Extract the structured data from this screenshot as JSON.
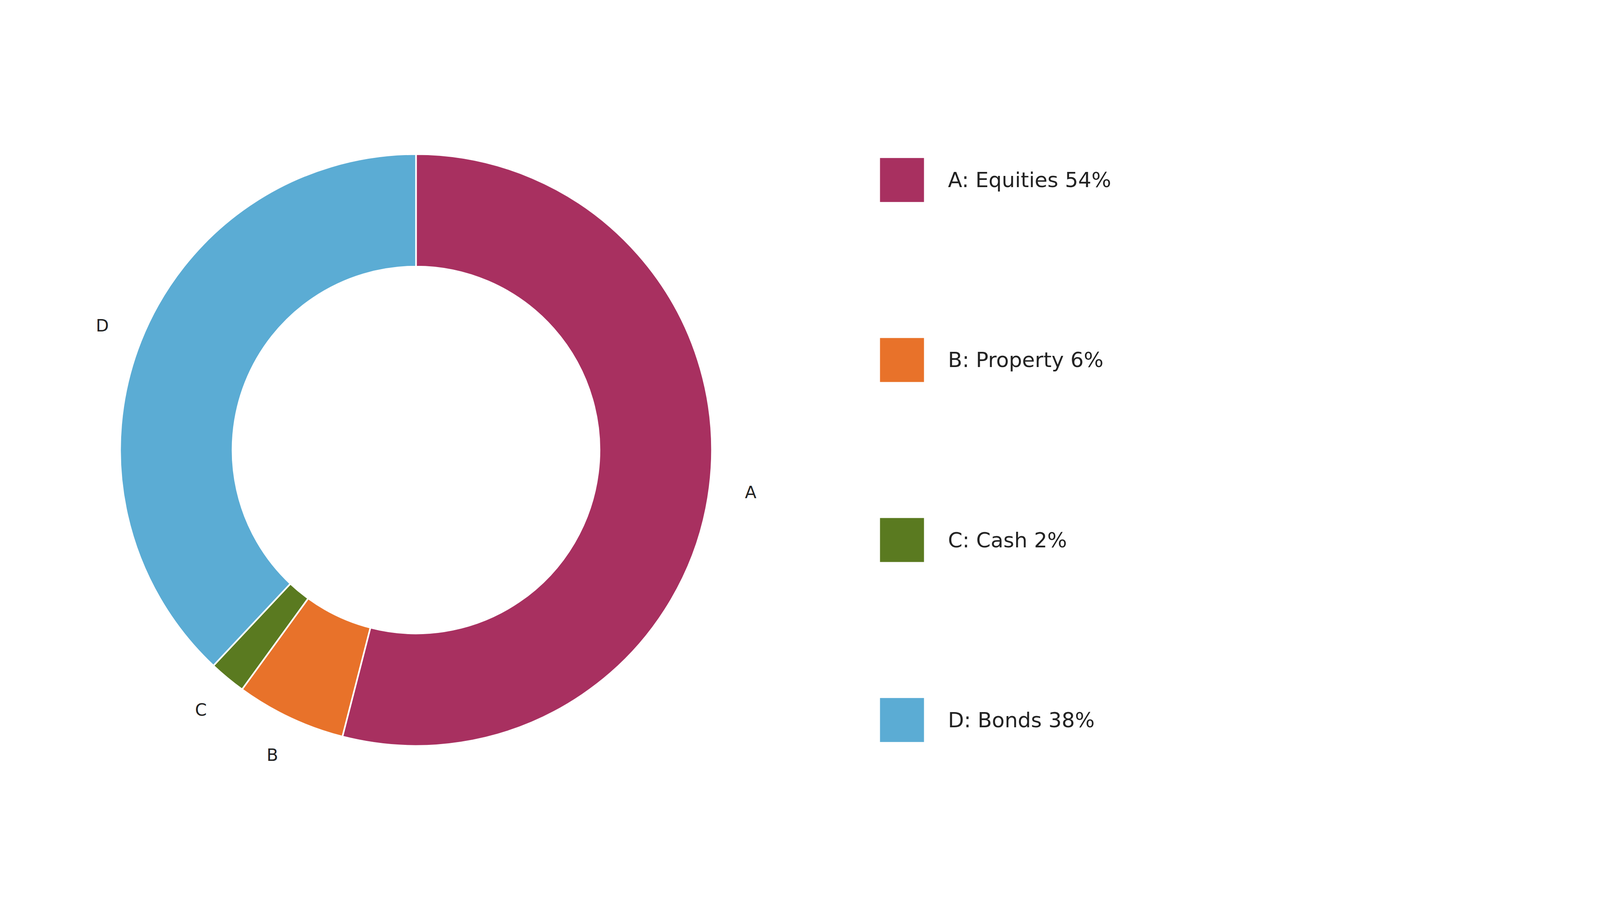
{
  "chart_data": {
    "type": "donut",
    "categories": [
      "A",
      "B",
      "C",
      "D"
    ],
    "values": [
      54,
      6,
      2,
      38
    ],
    "colors": [
      "#a83060",
      "#e8722a",
      "#5a7a20",
      "#5bacd4"
    ],
    "legend_labels": [
      "A: Equities 54%",
      "B: Property 6%",
      "C: Cash 2%",
      "D: Bonds 38%"
    ],
    "legend": "right"
  }
}
